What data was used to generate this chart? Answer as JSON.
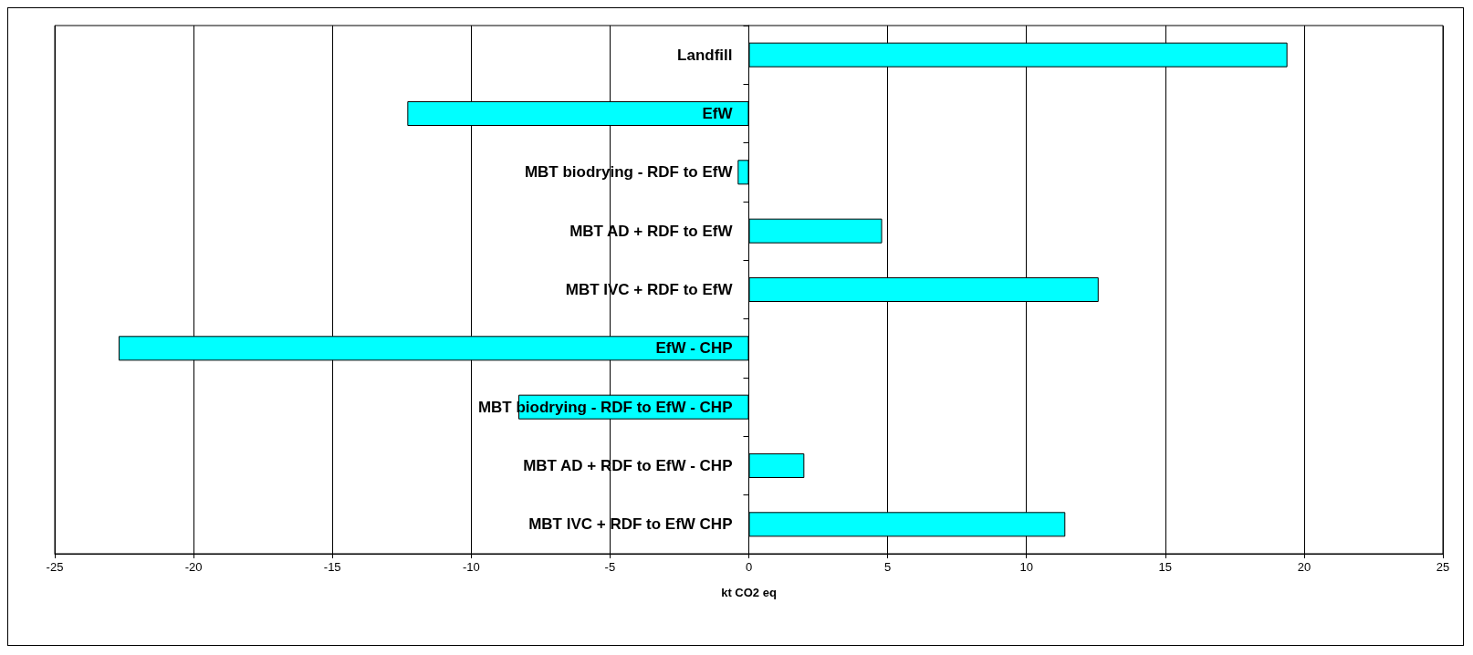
{
  "chart_data": {
    "type": "bar",
    "orientation": "horizontal",
    "xlabel": "kt CO2 eq",
    "categories": [
      "Landfill",
      "EfW",
      "MBT biodrying - RDF to EfW",
      "MBT AD + RDF to EfW",
      "MBT IVC + RDF to EfW",
      "EfW - CHP",
      "MBT biodrying - RDF to EfW - CHP",
      "MBT AD + RDF to EfW - CHP",
      "MBT IVC + RDF to EfW CHP"
    ],
    "values": [
      19.4,
      -12.3,
      -0.4,
      4.8,
      12.6,
      -22.7,
      -8.3,
      2.0,
      11.4
    ],
    "color": "#00ffff",
    "xlim": [
      -25,
      25
    ],
    "xticks": [
      -25,
      -20,
      -15,
      -10,
      -5,
      0,
      5,
      10,
      15,
      20,
      25
    ],
    "grid": "x"
  }
}
